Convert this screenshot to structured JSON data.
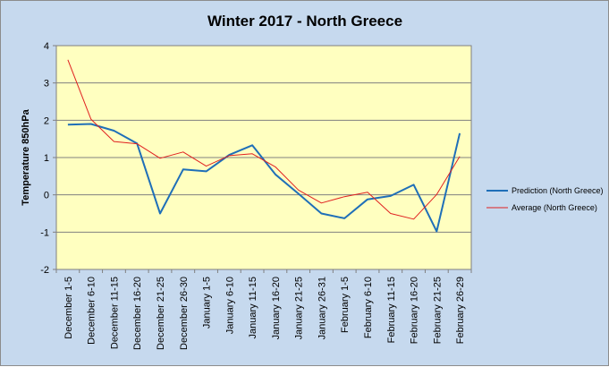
{
  "chart_data": {
    "type": "line",
    "title": "Winter 2017 - North Greece",
    "ylabel": "Temperature 850hPa",
    "xlabel": "",
    "ylim": [
      -2,
      4
    ],
    "yticks": [
      -2,
      -1,
      0,
      1,
      2,
      3,
      4
    ],
    "grid": true,
    "legend_position": "right",
    "plot_background": "#ffffc0",
    "chart_background": "#c6d9ee",
    "categories": [
      "December 1-5",
      "December 6-10",
      "December 11-15",
      "December 16-20",
      "December 21-25",
      "December 26-30",
      "January 1-5",
      "January 6-10",
      "January 11-15",
      "January 16-20",
      "January 21-25",
      "January 26-31",
      "February 1-5",
      "February 6-10",
      "February 11-15",
      "February 16-20",
      "February 21-25",
      "February 26-29"
    ],
    "series": [
      {
        "name": "Prediction (North Greece)",
        "color": "#1f6fb8",
        "values": [
          1.88,
          1.9,
          1.72,
          1.38,
          -0.5,
          0.68,
          0.63,
          1.07,
          1.33,
          0.55,
          0.03,
          -0.5,
          -0.63,
          -0.12,
          -0.03,
          0.27,
          -0.98,
          1.65
        ]
      },
      {
        "name": "Average (North Greece)",
        "color": "#e02020",
        "values": [
          3.62,
          2.03,
          1.43,
          1.37,
          0.98,
          1.15,
          0.77,
          1.05,
          1.1,
          0.75,
          0.13,
          -0.22,
          -0.05,
          0.07,
          -0.5,
          -0.65,
          0.01,
          1.03
        ]
      }
    ]
  }
}
